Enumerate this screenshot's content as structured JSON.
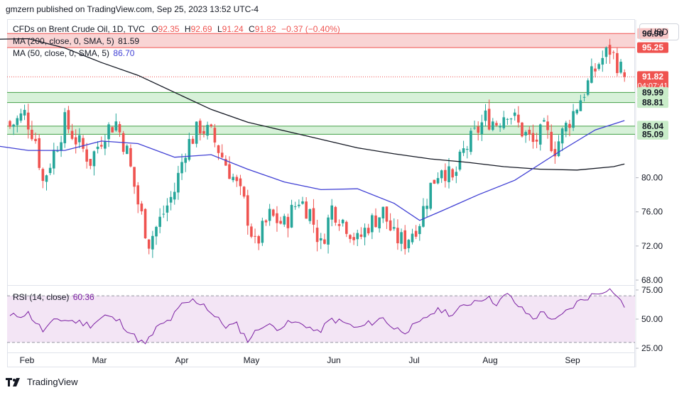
{
  "publisher_line": "gmzern published on TradingView.com, Sep 25, 2023 13:52 UTC-4",
  "currency_label": "USD",
  "footer_label": "TradingView",
  "legend": {
    "symbol": "CFDs on Brent Crude Oil, 1D, TVC",
    "o_label": "O",
    "o_value": "92.35",
    "h_label": "H",
    "h_value": "92.69",
    "l_label": "L",
    "l_value": "91.24",
    "c_label": "C",
    "c_value": "91.82",
    "change": "−0.37 (−0.40%)",
    "ma200_label": "MA (200, close, 0, SMA, 5)",
    "ma200_value": "81.59",
    "ma50_label": "MA (50, close, 0, SMA, 5)",
    "ma50_value": "86.70",
    "rsi_label": "RSI (14, close)",
    "rsi_value": "60.36"
  },
  "colors": {
    "up": "#26a69a",
    "down": "#ef5350",
    "ma50": "#3f3fd4",
    "ma200": "#131722",
    "rsi": "#7b1fa2",
    "rsi_band": "#f3e5f5",
    "resistance": "#f8c9c9",
    "support": "#cdeecf"
  },
  "chart_data": {
    "type": "candlestick",
    "y_ticks": [
      "68.00",
      "72.00",
      "76.00",
      "80.00"
    ],
    "x_labels": [
      "Feb",
      "Mar",
      "Apr",
      "May",
      "Jun",
      "Jul",
      "Aug",
      "Sep"
    ],
    "price_range": [
      67.5,
      98.5
    ],
    "zones": [
      {
        "kind": "resistance",
        "top": 96.9,
        "bottom": 95.25
      },
      {
        "kind": "support",
        "top": 89.99,
        "bottom": 88.81
      },
      {
        "kind": "support",
        "top": 86.04,
        "bottom": 85.09
      }
    ],
    "axis_tags": [
      {
        "value": 96.9,
        "label": "96.90",
        "bg": "#f7c6c6",
        "fg": "#131722"
      },
      {
        "value": 95.25,
        "label": "95.25",
        "bg": "#ef5350",
        "fg": "#ffffff"
      },
      {
        "value": 91.82,
        "label": "91.82",
        "sub": "04:07:41",
        "bg": "#ef5350",
        "fg": "#ffffff"
      },
      {
        "value": 89.99,
        "label": "89.99",
        "bg": "#c9ecc9",
        "fg": "#131722"
      },
      {
        "value": 88.81,
        "label": "88.81",
        "bg": "#c9ecc9",
        "fg": "#131722"
      },
      {
        "value": 86.04,
        "label": "86.04",
        "bg": "#c9ecc9",
        "fg": "#131722"
      },
      {
        "value": 85.09,
        "label": "85.09",
        "bg": "#c9ecc9",
        "fg": "#131722"
      }
    ],
    "close_anchors": [
      [
        0,
        86.0
      ],
      [
        4,
        87.5
      ],
      [
        7,
        84.5
      ],
      [
        9,
        79.5
      ],
      [
        12,
        83.0
      ],
      [
        15,
        86.5
      ],
      [
        18,
        84.5
      ],
      [
        22,
        82.0
      ],
      [
        26,
        85.5
      ],
      [
        29,
        86.5
      ],
      [
        32,
        83.0
      ],
      [
        35,
        77.0
      ],
      [
        38,
        72.5
      ],
      [
        41,
        75.0
      ],
      [
        45,
        78.5
      ],
      [
        48,
        83.5
      ],
      [
        52,
        86.0
      ],
      [
        55,
        85.0
      ],
      [
        58,
        82.5
      ],
      [
        61,
        80.0
      ],
      [
        64,
        77.0
      ],
      [
        67,
        72.0
      ],
      [
        71,
        75.5
      ],
      [
        75,
        74.5
      ],
      [
        79,
        77.5
      ],
      [
        82,
        76.0
      ],
      [
        85,
        72.0
      ],
      [
        88,
        76.5
      ],
      [
        92,
        74.5
      ],
      [
        95,
        72.5
      ],
      [
        98,
        74.5
      ],
      [
        102,
        76.0
      ],
      [
        105,
        73.0
      ],
      [
        108,
        72.5
      ],
      [
        112,
        75.0
      ],
      [
        115,
        79.0
      ],
      [
        118,
        81.5
      ],
      [
        121,
        79.5
      ],
      [
        124,
        83.0
      ],
      [
        127,
        85.0
      ],
      [
        130,
        87.0
      ],
      [
        133,
        86.5
      ],
      [
        136,
        88.0
      ],
      [
        140,
        85.5
      ],
      [
        143,
        84.0
      ],
      [
        146,
        85.5
      ],
      [
        149,
        83.5
      ],
      [
        152,
        86.0
      ],
      [
        155,
        88.5
      ],
      [
        158,
        91.0
      ],
      [
        161,
        93.5
      ],
      [
        164,
        95.0
      ],
      [
        166,
        93.5
      ],
      [
        168,
        91.8
      ]
    ],
    "ma200_path": [
      [
        -8,
        96.2
      ],
      [
        5,
        96.3
      ],
      [
        15,
        95.2
      ],
      [
        25,
        93.5
      ],
      [
        35,
        92.0
      ],
      [
        45,
        90.0
      ],
      [
        55,
        88.0
      ],
      [
        65,
        86.5
      ],
      [
        80,
        85.0
      ],
      [
        95,
        83.5
      ],
      [
        105,
        82.8
      ],
      [
        115,
        82.2
      ],
      [
        125,
        81.8
      ],
      [
        135,
        81.3
      ],
      [
        145,
        81.0
      ],
      [
        155,
        80.9
      ],
      [
        165,
        81.3
      ],
      [
        168,
        81.6
      ]
    ],
    "ma50_path": [
      [
        -8,
        84.0
      ],
      [
        5,
        83.2
      ],
      [
        15,
        83.2
      ],
      [
        25,
        84.3
      ],
      [
        35,
        84.0
      ],
      [
        45,
        82.4
      ],
      [
        55,
        82.7
      ],
      [
        65,
        81.0
      ],
      [
        75,
        79.5
      ],
      [
        85,
        78.6
      ],
      [
        95,
        78.7
      ],
      [
        105,
        77.0
      ],
      [
        112,
        75.0
      ],
      [
        118,
        76.1
      ],
      [
        128,
        78.0
      ],
      [
        138,
        79.7
      ],
      [
        150,
        83.0
      ],
      [
        160,
        85.6
      ],
      [
        168,
        86.7
      ]
    ],
    "rsi": {
      "ticks": [
        "25.00",
        "50.00",
        "75.00"
      ],
      "range": [
        22,
        78
      ],
      "band": [
        30,
        70
      ],
      "anchors": [
        [
          0,
          52
        ],
        [
          5,
          55
        ],
        [
          9,
          40
        ],
        [
          13,
          50
        ],
        [
          18,
          48
        ],
        [
          22,
          45
        ],
        [
          26,
          53
        ],
        [
          30,
          48
        ],
        [
          34,
          35
        ],
        [
          37,
          28
        ],
        [
          40,
          42
        ],
        [
          44,
          50
        ],
        [
          47,
          62
        ],
        [
          50,
          66
        ],
        [
          53,
          63
        ],
        [
          56,
          52
        ],
        [
          59,
          44
        ],
        [
          62,
          45
        ],
        [
          65,
          32
        ],
        [
          69,
          45
        ],
        [
          73,
          43
        ],
        [
          77,
          47
        ],
        [
          81,
          45
        ],
        [
          84,
          38
        ],
        [
          88,
          50
        ],
        [
          92,
          46
        ],
        [
          95,
          42
        ],
        [
          98,
          46
        ],
        [
          102,
          51
        ],
        [
          105,
          42
        ],
        [
          108,
          40
        ],
        [
          112,
          46
        ],
        [
          115,
          55
        ],
        [
          118,
          58
        ],
        [
          121,
          54
        ],
        [
          124,
          61
        ],
        [
          127,
          66
        ],
        [
          130,
          69
        ],
        [
          133,
          64
        ],
        [
          136,
          71
        ],
        [
          140,
          58
        ],
        [
          143,
          51
        ],
        [
          146,
          56
        ],
        [
          149,
          48
        ],
        [
          152,
          56
        ],
        [
          155,
          64
        ],
        [
          158,
          69
        ],
        [
          161,
          73
        ],
        [
          163,
          76
        ],
        [
          165,
          74
        ],
        [
          168,
          60
        ]
      ]
    }
  }
}
